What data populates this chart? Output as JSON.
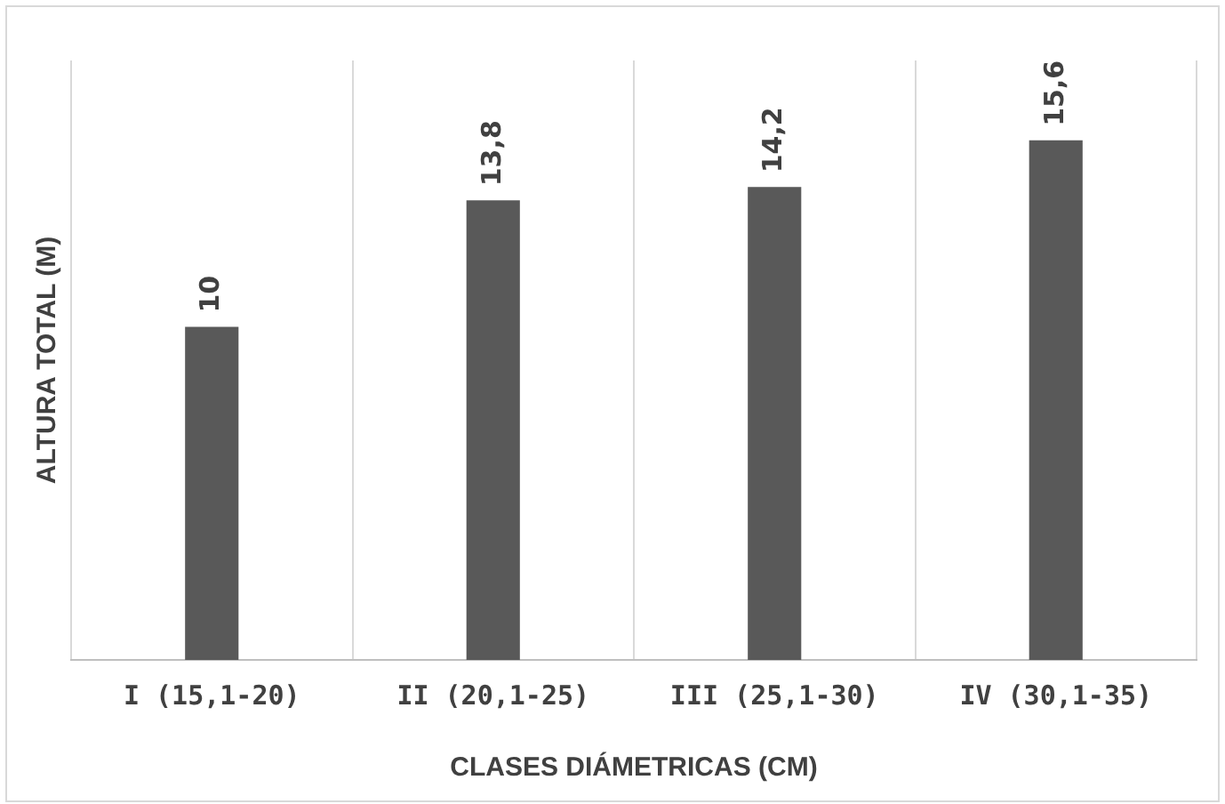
{
  "chart_data": {
    "type": "bar",
    "xlabel": "CLASES DIÁMETRICAS (CM)",
    "ylabel": "ALTURA TOTAL (M)",
    "categories": [
      "I (15,1-20)",
      "II (20,1-25)",
      "III (25,1-30)",
      "IV (30,1-35)"
    ],
    "values": [
      10,
      13.8,
      14.2,
      15.6
    ],
    "value_labels": [
      "10",
      "13,8",
      "14,2",
      "15,6"
    ],
    "color": "#595959",
    "grid": "x",
    "legend": false
  }
}
